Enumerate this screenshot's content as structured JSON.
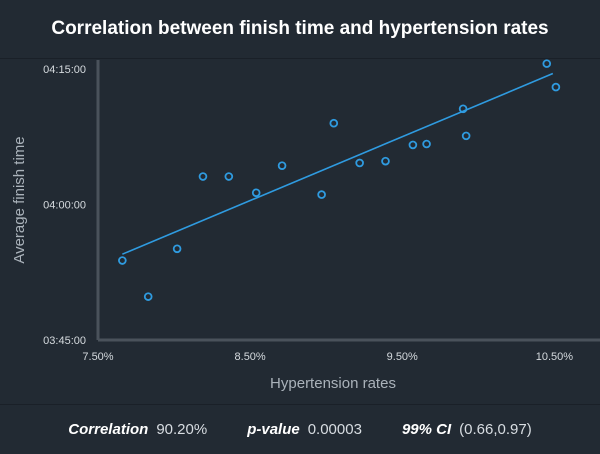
{
  "chart_data": {
    "type": "scatter",
    "title": "Correlation between finish time and hypertension rates",
    "xlabel": "Hypertension rates",
    "ylabel": "Average finish time",
    "x_unit": "percent",
    "y_unit": "minutes",
    "xlim": [
      7.5,
      10.8
    ],
    "ylim": [
      225,
      256
    ],
    "x_ticks": [
      {
        "value": 7.5,
        "label": "7.50%"
      },
      {
        "value": 8.5,
        "label": "8.50%"
      },
      {
        "value": 9.5,
        "label": "9.50%"
      },
      {
        "value": 10.5,
        "label": "10.50%"
      }
    ],
    "y_ticks": [
      {
        "value": 225,
        "label": "03:45:00"
      },
      {
        "value": 240,
        "label": "04:00:00"
      },
      {
        "value": 255,
        "label": "04:15:00"
      }
    ],
    "points": [
      {
        "x": 7.66,
        "y": 233.8
      },
      {
        "x": 7.83,
        "y": 229.8
      },
      {
        "x": 8.02,
        "y": 235.1
      },
      {
        "x": 8.19,
        "y": 243.1
      },
      {
        "x": 8.36,
        "y": 243.1
      },
      {
        "x": 8.54,
        "y": 241.3
      },
      {
        "x": 8.71,
        "y": 244.3
      },
      {
        "x": 8.97,
        "y": 241.1
      },
      {
        "x": 9.05,
        "y": 249.0
      },
      {
        "x": 9.22,
        "y": 244.6
      },
      {
        "x": 9.39,
        "y": 244.8
      },
      {
        "x": 9.57,
        "y": 246.6
      },
      {
        "x": 9.66,
        "y": 246.7
      },
      {
        "x": 9.9,
        "y": 250.6
      },
      {
        "x": 9.92,
        "y": 247.6
      },
      {
        "x": 10.45,
        "y": 255.6
      },
      {
        "x": 10.51,
        "y": 253.0
      }
    ],
    "trendline": [
      {
        "x": 7.66,
        "y": 234.5
      },
      {
        "x": 10.49,
        "y": 254.5
      }
    ],
    "colors": {
      "points": "#2f9be0",
      "trendline": "#2f9be0",
      "axis": "#4a525b"
    },
    "grid": false
  },
  "stats": {
    "correlation_label": "Correlation",
    "correlation_value": "90.20%",
    "pvalue_label": "p-value",
    "pvalue_value": "0.00003",
    "ci_label": "99% CI",
    "ci_value": "(0.66,0.97)"
  }
}
